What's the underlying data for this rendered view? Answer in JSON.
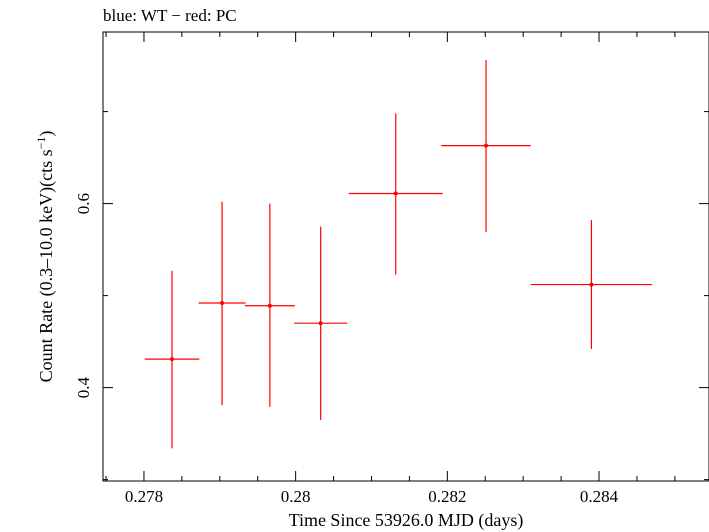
{
  "chart_data": {
    "type": "scatter",
    "title": "blue: WT − red: PC",
    "xlabel": "Time Since 53926.0 MJD (days)",
    "ylabel_main": "Count Rate (0.3–10.0 keV)(cts s",
    "ylabel_sup": "−1",
    "ylabel_close": ")",
    "xlim": [
      0.27746,
      0.28545
    ],
    "ylim": [
      0.2985,
      0.7865
    ],
    "x_ticks": [
      {
        "value": 0.278,
        "label": "0.278"
      },
      {
        "value": 0.28,
        "label": "0.28"
      },
      {
        "value": 0.282,
        "label": "0.282"
      },
      {
        "value": 0.284,
        "label": "0.284"
      }
    ],
    "y_ticks": [
      {
        "value": 0.4,
        "label": "0.4"
      },
      {
        "value": 0.6,
        "label": "0.6"
      }
    ],
    "grid": false,
    "series": [
      {
        "color": "#ff0000",
        "points": [
          {
            "x": 0.27837,
            "y": 0.431,
            "xerr": 0.00036,
            "ylow": 0.334,
            "yhigh": 0.527
          },
          {
            "x": 0.27903,
            "y": 0.492,
            "xerr": 0.00031,
            "ylow": 0.381,
            "yhigh": 0.602
          },
          {
            "x": 0.27966,
            "y": 0.489,
            "xerr": 0.00033,
            "ylow": 0.379,
            "yhigh": 0.6
          },
          {
            "x": 0.28033,
            "y": 0.47,
            "xerr": 0.00035,
            "ylow": 0.365,
            "yhigh": 0.575
          },
          {
            "x": 0.28132,
            "y": 0.611,
            "xerr": 0.00062,
            "ylow": 0.523,
            "yhigh": 0.698
          },
          {
            "x": 0.28251,
            "y": 0.663,
            "xerr": 0.00059,
            "ylow": 0.569,
            "yhigh": 0.756
          },
          {
            "x": 0.2839,
            "y": 0.512,
            "xerr": 0.0008,
            "ylow": 0.442,
            "yhigh": 0.582
          }
        ]
      }
    ]
  }
}
